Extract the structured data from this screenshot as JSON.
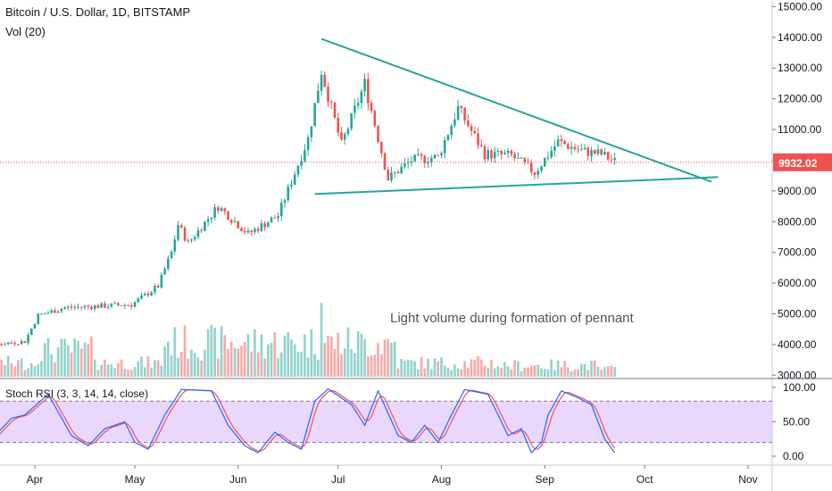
{
  "header": {
    "title": "Bitcoin / U.S. Dollar, 1D, BITSTAMP",
    "volume_label": "Vol (20)"
  },
  "oscillator": {
    "label": "Stoch RSI (3, 3, 14, 14, close)"
  },
  "annotation": "Light volume during formation of pennant",
  "price_tag": {
    "value": "9932.02",
    "color": "#ef5350"
  },
  "colors": {
    "up": "#26a69a",
    "down": "#ef5350",
    "trendline": "#26a69a",
    "stoch_k": "#2962ff",
    "stoch_d": "#ef5350",
    "stoch_band": "#e1c8fb"
  },
  "chart_data": [
    {
      "type": "candlestick",
      "title": "Bitcoin / U.S. Dollar, 1D, BITSTAMP",
      "y_ticks": [
        "15000.00",
        "14000.00",
        "13000.00",
        "12000.00",
        "11000.00",
        "10000.00",
        "9000.00",
        "8000.00",
        "7000.00",
        "6000.00",
        "5000.00",
        "4000.00",
        "3000.00"
      ],
      "x_ticks": [
        "Apr",
        "May",
        "Jun",
        "Jul",
        "Aug",
        "Sep",
        "Oct",
        "Nov"
      ],
      "ylim": [
        2950,
        15100
      ],
      "last_price": 9932.02,
      "trendlines": [
        {
          "name": "upper",
          "from": [
            "2019-06-26",
            13950
          ],
          "to": [
            "2019-10-21",
            9300
          ]
        },
        {
          "name": "lower",
          "from": [
            "2019-06-24",
            8900
          ],
          "to": [
            "2019-10-23",
            9450
          ]
        }
      ],
      "closes": [
        [
          "2019-03-01",
          3850
        ],
        [
          "2019-03-15",
          3950
        ],
        [
          "2019-03-29",
          4100
        ],
        [
          "2019-04-02",
          4950
        ],
        [
          "2019-04-10",
          5200
        ],
        [
          "2019-04-20",
          5250
        ],
        [
          "2019-04-30",
          5300
        ],
        [
          "2019-05-08",
          5900
        ],
        [
          "2019-05-12",
          7000
        ],
        [
          "2019-05-14",
          7900
        ],
        [
          "2019-05-17",
          7300
        ],
        [
          "2019-05-26",
          8500
        ],
        [
          "2019-06-04",
          7600
        ],
        [
          "2019-06-13",
          8200
        ],
        [
          "2019-06-22",
          10700
        ],
        [
          "2019-06-26",
          12900
        ],
        [
          "2019-07-02",
          10500
        ],
        [
          "2019-07-09",
          12500
        ],
        [
          "2019-07-16",
          9400
        ],
        [
          "2019-07-23",
          10000
        ],
        [
          "2019-07-31",
          10100
        ],
        [
          "2019-08-06",
          11700
        ],
        [
          "2019-08-14",
          10200
        ],
        [
          "2019-08-22",
          10150
        ],
        [
          "2019-08-29",
          9600
        ],
        [
          "2019-09-05",
          10600
        ],
        [
          "2019-09-12",
          10300
        ],
        [
          "2019-09-18",
          10200
        ],
        [
          "2019-09-22",
          9950
        ]
      ]
    },
    {
      "type": "bar",
      "title": "Vol (20)",
      "note": "Light volume during formation of pennant"
    },
    {
      "type": "line",
      "title": "Stoch RSI (3, 3, 14, 14, close)",
      "y_ticks": [
        "100.00",
        "50.00",
        "0.00"
      ],
      "ylim": [
        -10,
        110
      ],
      "band": [
        20,
        80
      ],
      "series": [
        {
          "name": "K",
          "color": "#2962ff"
        },
        {
          "name": "D",
          "color": "#ef5350"
        }
      ],
      "k_values": [
        [
          "2019-03-01",
          75
        ],
        [
          "2019-03-05",
          95
        ],
        [
          "2019-03-12",
          60
        ],
        [
          "2019-03-18",
          20
        ],
        [
          "2019-03-25",
          55
        ],
        [
          "2019-03-29",
          60
        ],
        [
          "2019-04-05",
          90
        ],
        [
          "2019-04-12",
          30
        ],
        [
          "2019-04-17",
          15
        ],
        [
          "2019-04-22",
          40
        ],
        [
          "2019-04-28",
          50
        ],
        [
          "2019-05-01",
          20
        ],
        [
          "2019-05-05",
          10
        ],
        [
          "2019-05-10",
          60
        ],
        [
          "2019-05-15",
          97
        ],
        [
          "2019-05-24",
          95
        ],
        [
          "2019-05-29",
          45
        ],
        [
          "2019-06-03",
          15
        ],
        [
          "2019-06-07",
          5
        ],
        [
          "2019-06-12",
          35
        ],
        [
          "2019-06-16",
          20
        ],
        [
          "2019-06-20",
          10
        ],
        [
          "2019-06-24",
          80
        ],
        [
          "2019-06-28",
          98
        ],
        [
          "2019-07-05",
          75
        ],
        [
          "2019-07-09",
          45
        ],
        [
          "2019-07-13",
          95
        ],
        [
          "2019-07-19",
          30
        ],
        [
          "2019-07-23",
          20
        ],
        [
          "2019-07-27",
          45
        ],
        [
          "2019-07-31",
          20
        ],
        [
          "2019-08-04",
          60
        ],
        [
          "2019-08-08",
          97
        ],
        [
          "2019-08-15",
          90
        ],
        [
          "2019-08-21",
          30
        ],
        [
          "2019-08-25",
          40
        ],
        [
          "2019-08-28",
          5
        ],
        [
          "2019-08-31",
          20
        ],
        [
          "2019-09-02",
          60
        ],
        [
          "2019-09-06",
          95
        ],
        [
          "2019-09-11",
          85
        ],
        [
          "2019-09-15",
          75
        ],
        [
          "2019-09-19",
          25
        ],
        [
          "2019-09-22",
          5
        ]
      ]
    }
  ]
}
